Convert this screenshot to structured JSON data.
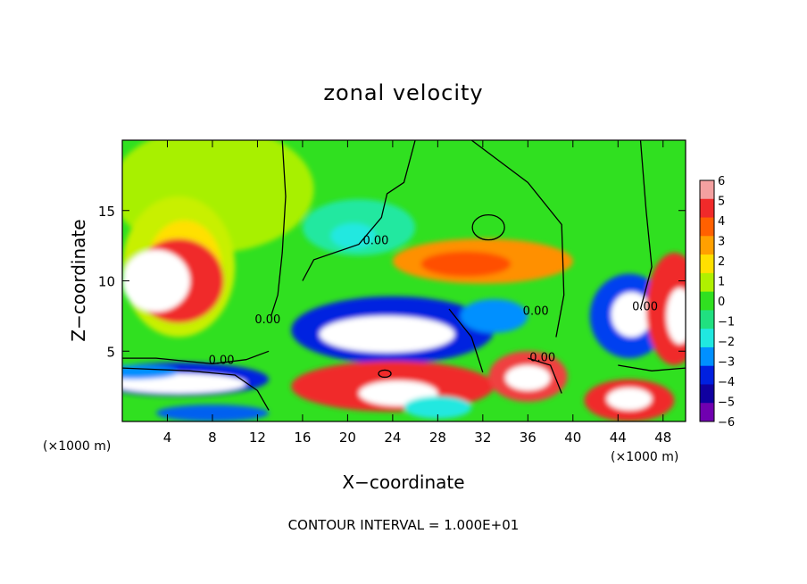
{
  "chart_data": {
    "type": "heatmap",
    "title": "zonal velocity",
    "xlabel": "X−coordinate",
    "ylabel": "Z−coordinate",
    "x_units": "(×1000 m)",
    "x_units_right": "(×1000 m)",
    "footer": "CONTOUR INTERVAL = 1.000E+01",
    "xlim": [
      0,
      50
    ],
    "ylim": [
      0,
      20
    ],
    "x_ticks": [
      4,
      8,
      12,
      16,
      20,
      24,
      28,
      32,
      36,
      40,
      44,
      48
    ],
    "x_tick_labels": [
      "4",
      "8",
      "12",
      "16",
      "20",
      "24",
      "28",
      "32",
      "36",
      "40",
      "44",
      "48"
    ],
    "y_ticks": [
      5,
      10,
      15
    ],
    "y_tick_labels": [
      "5",
      "10",
      "15"
    ],
    "colorbar": {
      "levels": [
        6,
        5,
        4,
        3,
        2,
        1,
        0,
        -1,
        -2,
        -3,
        -4,
        -5,
        -6
      ],
      "labels": [
        "6",
        "5",
        "4",
        "3",
        "2",
        "1",
        "0",
        "−1",
        "−2",
        "−3",
        "−4",
        "−5",
        "−6"
      ],
      "colors": [
        "#f4a0a0",
        "#f02a2a",
        "#ff6000",
        "#ffa000",
        "#ffe000",
        "#b0f000",
        "#30e020",
        "#20e080",
        "#20e8e0",
        "#0090ff",
        "#0020e0",
        "#1000a0",
        "#7000b0"
      ]
    },
    "contour_labels": [
      {
        "text": "0.00",
        "x": 22.5,
        "z": 12.6
      },
      {
        "text": "0.00",
        "x": 36.7,
        "z": 7.6
      },
      {
        "text": "0.00",
        "x": 8.8,
        "z": 4.1
      },
      {
        "text": "0.00",
        "x": 12.9,
        "z": 7.0
      },
      {
        "text": "0.00",
        "x": 37.3,
        "z": 4.3
      },
      {
        "text": "0.00",
        "x": 46.4,
        "z": 7.9
      }
    ]
  }
}
